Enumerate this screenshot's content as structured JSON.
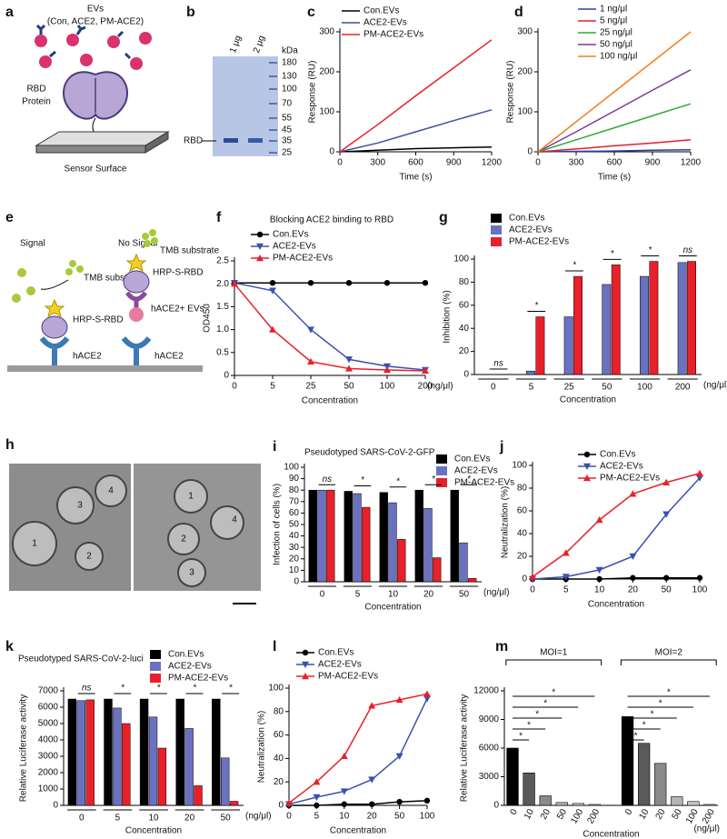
{
  "diagram_a": {
    "label": "a",
    "title": "EVs",
    "subtitle": "(Con, ACE2, PM-ACE2)",
    "protein": [
      "RBD",
      "Protein"
    ],
    "surface": "Sensor Surface"
  },
  "gel_b": {
    "label": "b",
    "lanes": [
      "1 μg",
      "2 μg"
    ],
    "unit": "kDa",
    "markers": [
      "180",
      "130",
      "100",
      "70",
      "55",
      "45",
      "35",
      "25"
    ],
    "band": "RBD"
  },
  "assay_e": {
    "label": "e",
    "left": {
      "title": "Signal",
      "substrate": "TMB substrate",
      "probe": "HRP-S-RBD",
      "receptor": "hACE2"
    },
    "right": {
      "title": "No Signal",
      "substrate": "TMB substrate",
      "probe": "HRP-S-RBD",
      "ev": "hACE2+ EVs",
      "receptor": "hACE2"
    }
  },
  "em_h": {
    "label": "h",
    "left_numbers": [
      "1",
      "3",
      "4",
      "2"
    ],
    "right_numbers": [
      "1",
      "2",
      "4",
      "3"
    ]
  },
  "chart_data": [
    {
      "type": "line",
      "label": "c",
      "x": [
        0,
        300,
        600,
        900,
        1200
      ],
      "xlim": [
        0,
        1200
      ],
      "xticks": [
        0,
        300,
        600,
        900,
        1200
      ],
      "ylim": [
        0,
        300
      ],
      "yticks": [
        0,
        100,
        200,
        300
      ],
      "xlabel": "Time (s)",
      "ylabel": "Response (RU)",
      "legend": "upper left",
      "series": [
        {
          "name": "Con.EVs",
          "color": "#000000",
          "values": [
            0,
            4,
            8,
            10,
            12
          ]
        },
        {
          "name": "ACE2-EVs",
          "color": "#3a50a0",
          "values": [
            0,
            22,
            50,
            78,
            105
          ]
        },
        {
          "name": "PM-ACE2-EVs",
          "color": "#e8202a",
          "values": [
            0,
            68,
            140,
            210,
            280
          ]
        }
      ]
    },
    {
      "type": "line",
      "label": "d",
      "x": [
        0,
        300,
        600,
        900,
        1200
      ],
      "xlim": [
        0,
        1200
      ],
      "xticks": [
        0,
        300,
        600,
        900,
        1200
      ],
      "ylim": [
        0,
        300
      ],
      "yticks": [
        0,
        100,
        200,
        300
      ],
      "xlabel": "Time (s)",
      "ylabel": "Response (RU)",
      "legend": "upper left",
      "series": [
        {
          "name": "1 ng/μl",
          "color": "#2b3fa8",
          "values": [
            0,
            1,
            2,
            4,
            5
          ]
        },
        {
          "name": "5 ng/μl",
          "color": "#e02030",
          "values": [
            0,
            7,
            15,
            22,
            30
          ]
        },
        {
          "name": "25 ng/μl",
          "color": "#2fa83a",
          "values": [
            0,
            30,
            60,
            90,
            120
          ]
        },
        {
          "name": "50 ng/μl",
          "color": "#7a3a9a",
          "values": [
            0,
            50,
            102,
            154,
            205
          ]
        },
        {
          "name": "100 ng/μl",
          "color": "#f08020",
          "values": [
            0,
            75,
            150,
            225,
            300
          ]
        }
      ]
    },
    {
      "type": "line",
      "label": "f",
      "title": "Blocking ACE2 binding to RBD",
      "categories": [
        "0",
        "5",
        "25",
        "50",
        "100",
        "200"
      ],
      "x_unit": "(ng/μl)",
      "ylim": [
        0,
        2.5
      ],
      "yticks": [
        0,
        0.5,
        {
          "value": 1,
          "label": "1.0"
        },
        1.5,
        {
          "value": 2,
          "label": "2.0"
        },
        2.5
      ],
      "xlabel": "Concentration",
      "ylabel": "OD450",
      "legend": "upper left",
      "series": [
        {
          "name": "Con.EVs",
          "color": "#000000",
          "marker": "circle",
          "values": [
            2.02,
            2.02,
            2.02,
            2.02,
            2.02,
            2.02
          ]
        },
        {
          "name": "ACE2-EVs",
          "color": "#3a50b0",
          "marker": "tri-down",
          "values": [
            2.02,
            1.85,
            1.0,
            0.35,
            0.2,
            0.12
          ]
        },
        {
          "name": "PM-ACE2-EVs",
          "color": "#e8202a",
          "marker": "tri-up",
          "values": [
            2.0,
            1.0,
            0.3,
            0.15,
            0.12,
            0.1
          ]
        }
      ]
    },
    {
      "type": "bar",
      "label": "g",
      "categories": [
        "0",
        "5",
        "25",
        "50",
        "100",
        "200"
      ],
      "x_unit": "(ng/μl)",
      "ylim": [
        0,
        100
      ],
      "yticks": [
        0,
        20,
        40,
        60,
        80,
        100
      ],
      "xlabel": "Concentration",
      "ylabel": "Inhibition (%)",
      "legend": "upper left",
      "significance": [
        "ns",
        "*",
        "*",
        "*",
        "*",
        "ns"
      ],
      "series": [
        {
          "name": "Con.EVs",
          "color": "#000000",
          "values": [
            0,
            0,
            0,
            0,
            0,
            0
          ]
        },
        {
          "name": "ACE2-EVs",
          "color": "#6a72c0",
          "values": [
            0,
            3,
            50,
            78,
            85,
            97
          ]
        },
        {
          "name": "PM-ACE2-EVs",
          "color": "#e8202a",
          "values": [
            0,
            50,
            85,
            95,
            98,
            98
          ]
        }
      ]
    },
    {
      "type": "bar",
      "label": "i",
      "title": "Pseudotyped SARS-CoV-2-GFP",
      "categories": [
        "0",
        "5",
        "10",
        "20",
        "50"
      ],
      "x_unit": "(ng/μl)",
      "ylim": [
        0,
        100
      ],
      "yticks": [
        0,
        10,
        20,
        30,
        40,
        50,
        60,
        70,
        80,
        90,
        100
      ],
      "xlabel": "Concentration",
      "ylabel": "Infection of cells (%)",
      "legend": "upper right",
      "significance": [
        "ns",
        "*",
        "*",
        "*",
        "*"
      ],
      "series": [
        {
          "name": "Con.EVs",
          "color": "#000000",
          "values": [
            80,
            79,
            78,
            80,
            80
          ]
        },
        {
          "name": "ACE2-EVs",
          "color": "#6a72c0",
          "values": [
            80,
            77,
            69,
            64,
            34
          ]
        },
        {
          "name": "PM-ACE2-EVs",
          "color": "#e8202a",
          "values": [
            80,
            65,
            37,
            21,
            3
          ]
        }
      ]
    },
    {
      "type": "line",
      "label": "j",
      "categories": [
        "0",
        "5",
        "10",
        "20",
        "50",
        "100"
      ],
      "ylim": [
        0,
        100
      ],
      "yticks": [
        0,
        20,
        40,
        60,
        80,
        100
      ],
      "xlabel": "Concentration",
      "ylabel": "Neutralization (%)",
      "legend": "upper left",
      "series": [
        {
          "name": "Con.EVs",
          "color": "#000000",
          "marker": "circle",
          "values": [
            0,
            0,
            0,
            1,
            1,
            1
          ]
        },
        {
          "name": "ACE2-EVs",
          "color": "#3a50b0",
          "marker": "tri-down",
          "values": [
            0,
            2,
            8,
            20,
            57,
            89
          ]
        },
        {
          "name": "PM-ACE2-EVs",
          "color": "#e8202a",
          "marker": "tri-up",
          "values": [
            2,
            23,
            52,
            75,
            85,
            93
          ]
        }
      ]
    },
    {
      "type": "bar",
      "label": "k",
      "title": "Pseudotyped SARS-CoV-2-luci",
      "categories": [
        "0",
        "5",
        "10",
        "20",
        "50"
      ],
      "x_unit": "(ng/μl)",
      "ylim": [
        0,
        7000
      ],
      "yticks": [
        0,
        1000,
        2000,
        3000,
        4000,
        5000,
        6000,
        7000
      ],
      "xlabel": "Concentration",
      "ylabel": "Relative Luciferase activity",
      "legend": "upper right",
      "significance": [
        "ns",
        "*",
        "*",
        "*",
        "*"
      ],
      "series": [
        {
          "name": "Con.EVs",
          "color": "#000000",
          "values": [
            6500,
            6500,
            6500,
            6500,
            6500
          ]
        },
        {
          "name": "ACE2-EVs",
          "color": "#6a72c0",
          "values": [
            6400,
            5950,
            5400,
            4700,
            2900
          ]
        },
        {
          "name": "PM-ACE2-EVs",
          "color": "#e8202a",
          "values": [
            6450,
            5000,
            3500,
            1200,
            250
          ]
        }
      ]
    },
    {
      "type": "line",
      "label": "l",
      "categories": [
        "0",
        "5",
        "10",
        "20",
        "50",
        "100"
      ],
      "ylim": [
        0,
        100
      ],
      "yticks": [
        0,
        20,
        40,
        60,
        80,
        100
      ],
      "xlabel": "Concentration",
      "ylabel": "Neutralization (%)",
      "legend": "upper left",
      "series": [
        {
          "name": "Con.EVs",
          "color": "#000000",
          "marker": "circle",
          "values": [
            0,
            0,
            1,
            1,
            3,
            4
          ]
        },
        {
          "name": "ACE2-EVs",
          "color": "#3a50b0",
          "marker": "tri-down",
          "values": [
            1,
            7,
            12,
            22,
            42,
            91
          ]
        },
        {
          "name": "PM-ACE2-EVs",
          "color": "#e8202a",
          "marker": "tri-up",
          "values": [
            2,
            20,
            42,
            85,
            90,
            95
          ]
        }
      ]
    },
    {
      "type": "bar",
      "label": "m",
      "x_unit": "(ng/μl)",
      "ylim": [
        0,
        12000
      ],
      "yticks": [
        0,
        3000,
        6000,
        9000,
        12000
      ],
      "xlabel": "Concentration",
      "ylabel": "Relative Luciferase activity",
      "colors": [
        "#000000",
        "#5a5a5a",
        "#8a8a8a",
        "#b5b5b5",
        "#c8c8c8",
        "#d8d8d8"
      ],
      "groups": [
        {
          "name": "MOI=1",
          "categories": [
            "0",
            "10",
            "20",
            "50",
            "100",
            "200"
          ],
          "values": [
            6000,
            3400,
            1000,
            300,
            200,
            100
          ],
          "significance": [
            "*",
            "*",
            "*",
            "*",
            "*"
          ]
        },
        {
          "name": "MOI=2",
          "categories": [
            "0",
            "10",
            "20",
            "50",
            "100",
            "200"
          ],
          "values": [
            9300,
            6500,
            4400,
            900,
            400,
            100
          ],
          "significance": [
            "*",
            "*",
            "*",
            "*",
            "*"
          ]
        }
      ]
    }
  ]
}
